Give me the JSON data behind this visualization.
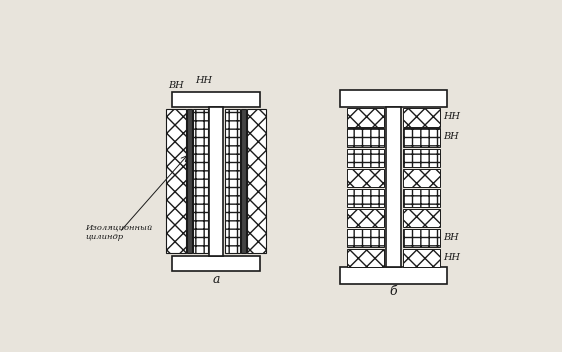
{
  "bg_color": "#e8e4dc",
  "line_color": "#1a1a1a",
  "label_VN": "ВН",
  "label_NN": "НН",
  "label_insulation": "Изоляционный\nцилиндр",
  "label_a": "а",
  "label_b": "б",
  "fig_width": 5.62,
  "fig_height": 3.52,
  "dpi": 100
}
